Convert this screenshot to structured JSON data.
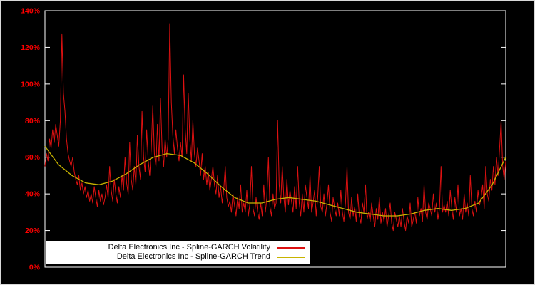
{
  "chart_data": {
    "type": "line",
    "title": "",
    "xlabel": "",
    "ylabel": "",
    "ylim": [
      0,
      140
    ],
    "y_ticks": [
      "0%",
      "20%",
      "40%",
      "60%",
      "80%",
      "100%",
      "120%",
      "140%"
    ],
    "y_tick_values": [
      0,
      20,
      40,
      60,
      80,
      100,
      120,
      140
    ],
    "x_tick_labels": [],
    "grid": false,
    "legend_position": "bottom-left-inside",
    "background_color": "#000000",
    "series": [
      {
        "name": "Delta Electronics Inc - Spline-GARCH Volatility",
        "color": "#dd1111",
        "values": [
          55,
          62,
          58,
          70,
          65,
          75,
          68,
          78,
          72,
          66,
          80,
          127,
          95,
          85,
          70,
          62,
          58,
          55,
          60,
          52,
          48,
          45,
          50,
          42,
          46,
          40,
          44,
          38,
          42,
          36,
          40,
          35,
          44,
          38,
          33,
          42,
          36,
          40,
          34,
          38,
          45,
          38,
          55,
          42,
          36,
          48,
          40,
          35,
          44,
          38,
          50,
          42,
          60,
          46,
          40,
          68,
          48,
          42,
          55,
          45,
          72,
          55,
          48,
          85,
          60,
          52,
          75,
          58,
          50,
          65,
          88,
          62,
          55,
          78,
          58,
          92,
          65,
          55,
          70,
          60,
          70,
          133,
          90,
          72,
          62,
          75,
          65,
          58,
          68,
          60,
          105,
          75,
          62,
          95,
          70,
          58,
          80,
          62,
          55,
          65,
          58,
          50,
          62,
          48,
          55,
          45,
          52,
          42,
          48,
          55,
          45,
          40,
          50,
          38,
          44,
          35,
          42,
          55,
          38,
          33,
          36,
          30,
          40,
          34,
          28,
          38,
          32,
          45,
          30,
          35,
          30,
          42,
          28,
          35,
          55,
          32,
          28,
          38,
          30,
          26,
          35,
          28,
          45,
          30,
          38,
          60,
          33,
          28,
          40,
          32,
          35,
          80,
          45,
          35,
          55,
          38,
          30,
          48,
          34,
          42,
          36,
          30,
          44,
          32,
          55,
          35,
          28,
          40,
          30,
          45,
          38,
          32,
          50,
          30,
          35,
          42,
          28,
          38,
          55,
          33,
          30,
          40,
          28,
          35,
          45,
          30,
          25,
          38,
          32,
          28,
          35,
          28,
          42,
          30,
          25,
          35,
          55,
          30,
          26,
          38,
          28,
          33,
          25,
          40,
          28,
          24,
          35,
          30,
          45,
          26,
          30,
          25,
          35,
          28,
          22,
          32,
          26,
          38,
          24,
          30,
          25,
          32,
          22,
          28,
          35,
          24,
          20,
          30,
          26,
          22,
          28,
          22,
          32,
          25,
          20,
          28,
          24,
          35,
          22,
          26,
          30,
          24,
          38,
          28,
          32,
          25,
          45,
          30,
          26,
          35,
          32,
          28,
          40,
          30,
          35,
          26,
          32,
          55,
          30,
          34,
          30,
          36,
          28,
          42,
          32,
          26,
          38,
          30,
          45,
          28,
          32,
          26,
          40,
          30,
          35,
          28,
          50,
          32,
          28,
          36,
          30,
          42,
          34,
          38,
          45,
          32,
          55,
          40,
          36,
          48,
          42,
          55,
          45,
          60,
          50,
          65,
          80,
          55,
          48,
          58
        ]
      },
      {
        "name": "Delta Electronics Inc - Spline-GARCH Trend",
        "color": "#c8b400",
        "values": [
          66,
          56,
          50,
          46,
          45,
          47,
          51,
          56,
          60,
          62,
          61,
          57,
          51,
          44,
          38,
          35,
          35,
          37,
          38,
          37,
          36,
          34,
          32,
          30,
          29,
          28,
          28,
          29,
          31,
          32,
          31,
          32,
          35,
          45,
          60
        ]
      }
    ]
  },
  "axis": {
    "tick_label_color": "#ff0000",
    "border_color": "#ffffff"
  },
  "legend": {
    "items": [
      {
        "label": "Delta Electronics Inc - Spline-GARCH Volatility",
        "color": "#dd1111"
      },
      {
        "label": "Delta Electronics Inc - Spline-GARCH Trend",
        "color": "#c8b400"
      }
    ]
  }
}
